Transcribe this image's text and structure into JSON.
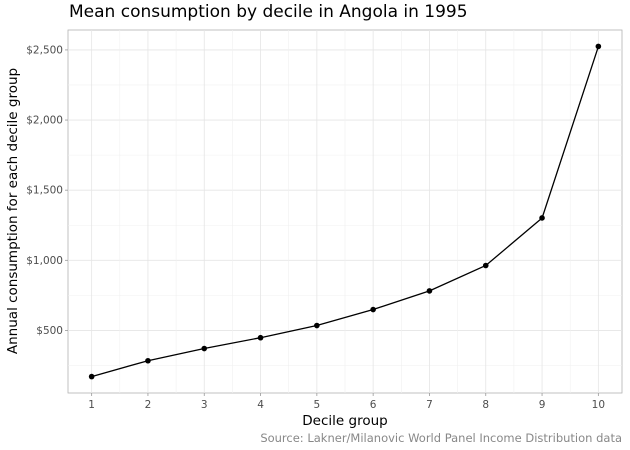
{
  "chart_data": {
    "type": "line",
    "title": "Mean consumption by decile in Angola in 1995",
    "caption": "Source: Lakner/Milanovic World Panel Income Distribution data",
    "xlabel": "Decile group",
    "ylabel": "Annual consumption for each decile group",
    "x": [
      1,
      2,
      3,
      4,
      5,
      6,
      7,
      8,
      9,
      10
    ],
    "values": [
      171,
      284,
      371,
      448,
      535,
      649,
      782,
      963,
      1302,
      2525
    ],
    "x_ticks": [
      "1",
      "2",
      "3",
      "4",
      "5",
      "6",
      "7",
      "8",
      "9",
      "10"
    ],
    "y_ticks": [
      500,
      1000,
      1500,
      2000,
      2500
    ],
    "y_tick_labels": [
      "$500",
      "$1,000",
      "$1,500",
      "$2,000",
      "$2,500"
    ],
    "xlim": [
      0.58,
      10.42
    ],
    "ylim": [
      54,
      2642
    ],
    "grid": true,
    "line_color": "#000000",
    "point_color": "#000000"
  }
}
